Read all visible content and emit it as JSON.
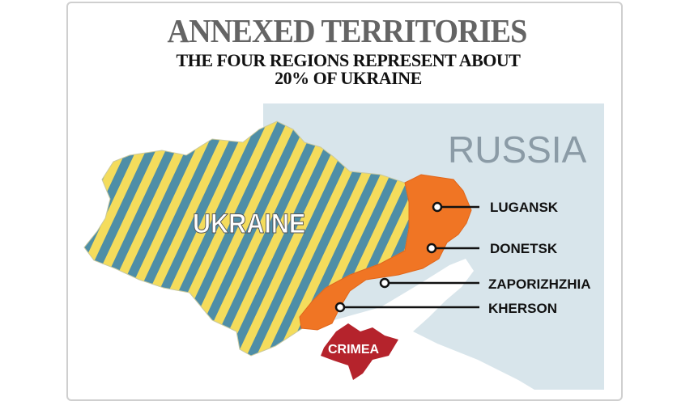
{
  "title": "ANNEXED TERRITORIES",
  "subtitle_line1": "THE FOUR REGIONS REPRESENT ABOUT",
  "subtitle_line2": "20% OF UKRAINE",
  "labels": {
    "russia": "RUSSIA",
    "ukraine": "UKRAINE",
    "crimea": "CRIMEA"
  },
  "regions": [
    {
      "name": "LUGANSK"
    },
    {
      "name": "DONETSK"
    },
    {
      "name": "ZAPORIZHZHIA"
    },
    {
      "name": "KHERSON"
    }
  ],
  "colors": {
    "russia": "#d8e5eb",
    "ukraine_stripe_blue": "#4e8ea7",
    "ukraine_stripe_yellow": "#f4dc5c",
    "annexed": "#f07524",
    "crimea": "#b5232c",
    "sea": "#ffffff"
  }
}
